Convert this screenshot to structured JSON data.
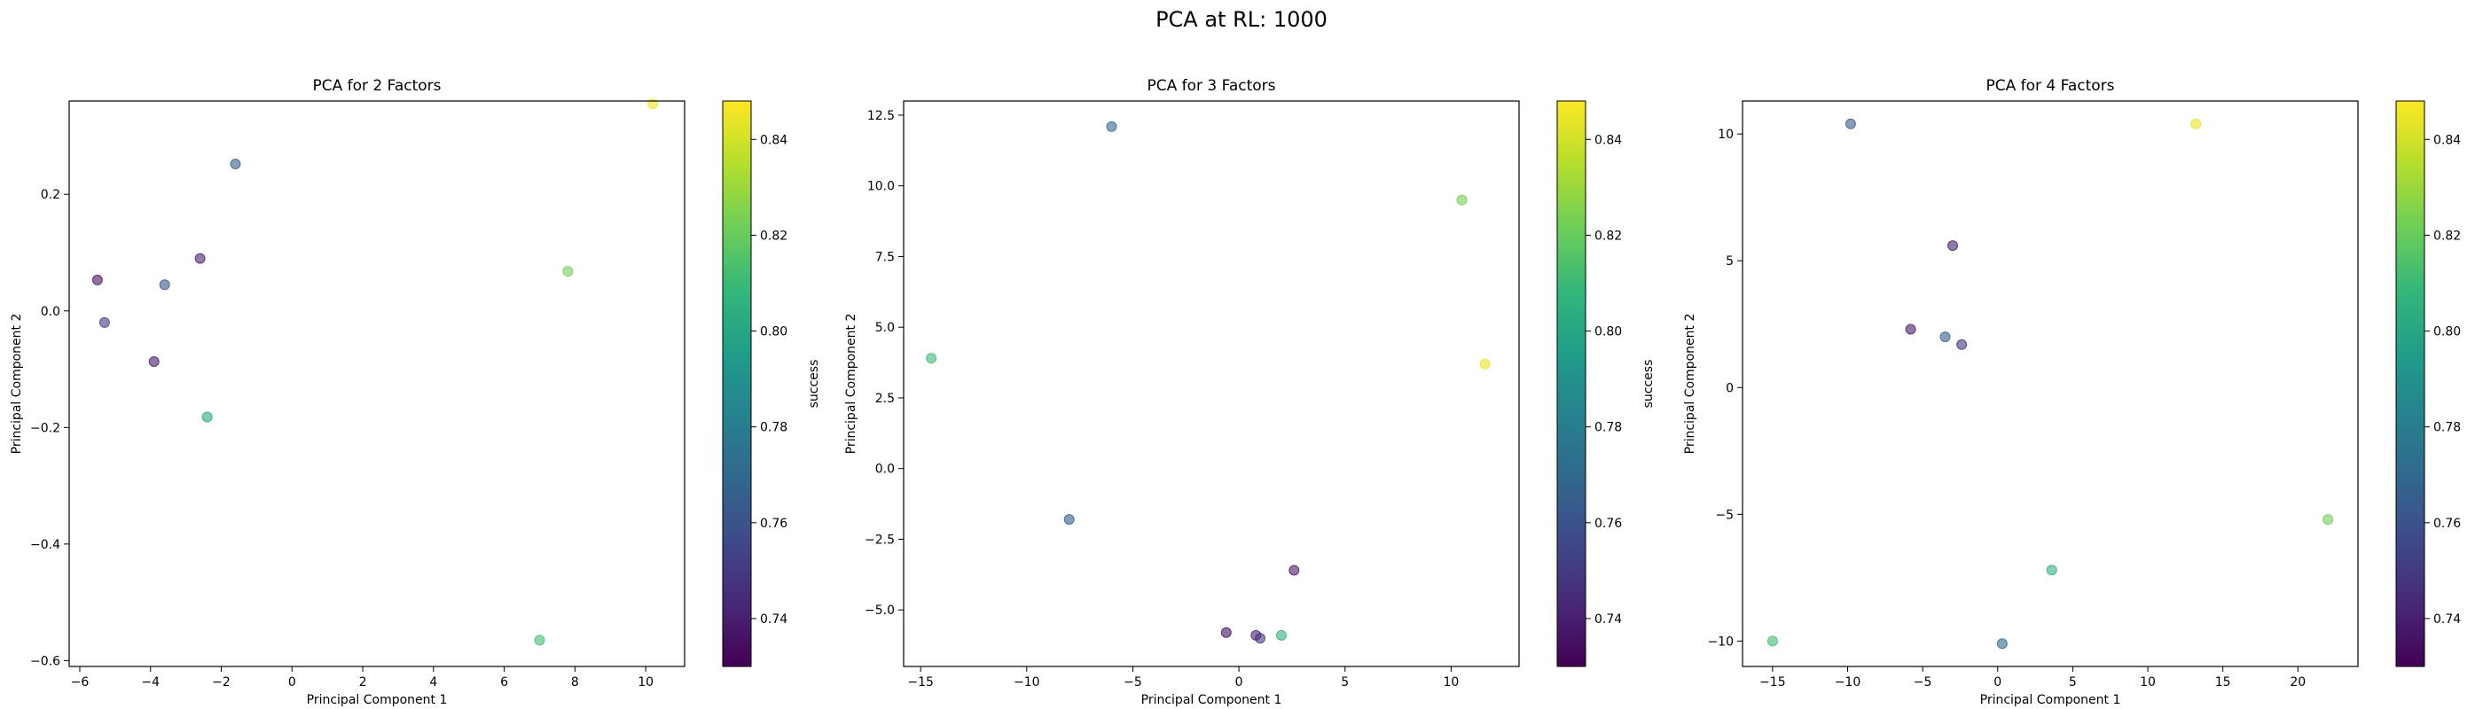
{
  "figure": {
    "suptitle": "PCA at RL: 1000"
  },
  "colorbar": {
    "label": "success",
    "range": [
      0.73,
      0.848
    ],
    "ticks": [
      "0.74",
      "0.76",
      "0.78",
      "0.80",
      "0.82",
      "0.84"
    ],
    "colormap": "viridis"
  },
  "chart_data": [
    {
      "type": "scatter",
      "title": "PCA for 2 Factors",
      "xlabel": "Principal Component 1",
      "ylabel": "Principal Component 2",
      "xlim": [
        -6.3,
        11.1
      ],
      "ylim": [
        -0.61,
        0.36
      ],
      "xticks": [
        -6,
        -4,
        -2,
        0,
        2,
        4,
        6,
        8,
        10
      ],
      "yticks": [
        -0.6,
        -0.4,
        -0.2,
        0.0,
        0.2
      ],
      "xtick_labels": [
        "−6",
        "−4",
        "−2",
        "0",
        "2",
        "4",
        "6",
        "8",
        "10"
      ],
      "ytick_labels": [
        "−0.6",
        "−0.4",
        "−0.2",
        "0.0",
        "0.2"
      ],
      "grid": false,
      "points": [
        {
          "x": 10.2,
          "y": 0.355,
          "success": 0.845
        },
        {
          "x": 7.8,
          "y": 0.068,
          "success": 0.823
        },
        {
          "x": 7.0,
          "y": -0.565,
          "success": 0.812
        },
        {
          "x": -1.6,
          "y": 0.252,
          "success": 0.765
        },
        {
          "x": -2.6,
          "y": 0.09,
          "success": 0.74
        },
        {
          "x": -3.6,
          "y": 0.045,
          "success": 0.76
        },
        {
          "x": -5.5,
          "y": 0.053,
          "success": 0.735
        },
        {
          "x": -5.3,
          "y": -0.02,
          "success": 0.75
        },
        {
          "x": -3.9,
          "y": -0.087,
          "success": 0.738
        },
        {
          "x": -2.4,
          "y": -0.182,
          "success": 0.8
        }
      ]
    },
    {
      "type": "scatter",
      "title": "PCA for 3 Factors",
      "xlabel": "Principal Component 1",
      "ylabel": "Principal Component 2",
      "xlim": [
        -15.8,
        13.2
      ],
      "ylim": [
        -7.0,
        13.0
      ],
      "xticks": [
        -15,
        -10,
        -5,
        0,
        5,
        10
      ],
      "yticks": [
        -5.0,
        -2.5,
        0.0,
        2.5,
        5.0,
        7.5,
        10.0,
        12.5
      ],
      "xtick_labels": [
        "−15",
        "−10",
        "−5",
        "0",
        "5",
        "10"
      ],
      "ytick_labels": [
        "−5.0",
        "−2.5",
        "0.0",
        "2.5",
        "5.0",
        "7.5",
        "10.0",
        "12.5"
      ],
      "grid": false,
      "points": [
        {
          "x": -6.0,
          "y": 12.1,
          "success": 0.768
        },
        {
          "x": 10.5,
          "y": 9.5,
          "success": 0.823
        },
        {
          "x": 11.6,
          "y": 3.7,
          "success": 0.845
        },
        {
          "x": -14.5,
          "y": 3.9,
          "success": 0.81
        },
        {
          "x": -8.0,
          "y": -1.8,
          "success": 0.765
        },
        {
          "x": 2.6,
          "y": -3.6,
          "success": 0.738
        },
        {
          "x": -0.6,
          "y": -5.8,
          "success": 0.735
        },
        {
          "x": 0.8,
          "y": -5.9,
          "success": 0.74
        },
        {
          "x": 1.0,
          "y": -6.0,
          "success": 0.75
        },
        {
          "x": 2.0,
          "y": -5.9,
          "success": 0.805
        }
      ]
    },
    {
      "type": "scatter",
      "title": "PCA for 4 Factors",
      "xlabel": "Principal Component 1",
      "ylabel": "Principal Component 2",
      "xlim": [
        -17.0,
        24.0
      ],
      "ylim": [
        -11.0,
        11.3
      ],
      "xticks": [
        -15,
        -10,
        -5,
        0,
        5,
        10,
        15,
        20
      ],
      "yticks": [
        -10,
        -5,
        0,
        5,
        10
      ],
      "xtick_labels": [
        "−15",
        "−10",
        "−5",
        "0",
        "5",
        "10",
        "15",
        "20"
      ],
      "ytick_labels": [
        "−10",
        "−5",
        "0",
        "5",
        "10"
      ],
      "grid": false,
      "points": [
        {
          "x": -9.8,
          "y": 10.4,
          "success": 0.762
        },
        {
          "x": 13.2,
          "y": 10.4,
          "success": 0.845
        },
        {
          "x": -3.0,
          "y": 5.6,
          "success": 0.74
        },
        {
          "x": -5.8,
          "y": 2.3,
          "success": 0.738
        },
        {
          "x": -3.5,
          "y": 2.0,
          "success": 0.765
        },
        {
          "x": -2.4,
          "y": 1.7,
          "success": 0.748
        },
        {
          "x": 22.0,
          "y": -5.2,
          "success": 0.823
        },
        {
          "x": 3.6,
          "y": -7.2,
          "success": 0.805
        },
        {
          "x": -15.0,
          "y": -10.0,
          "success": 0.812
        },
        {
          "x": 0.3,
          "y": -10.1,
          "success": 0.77
        }
      ]
    }
  ]
}
